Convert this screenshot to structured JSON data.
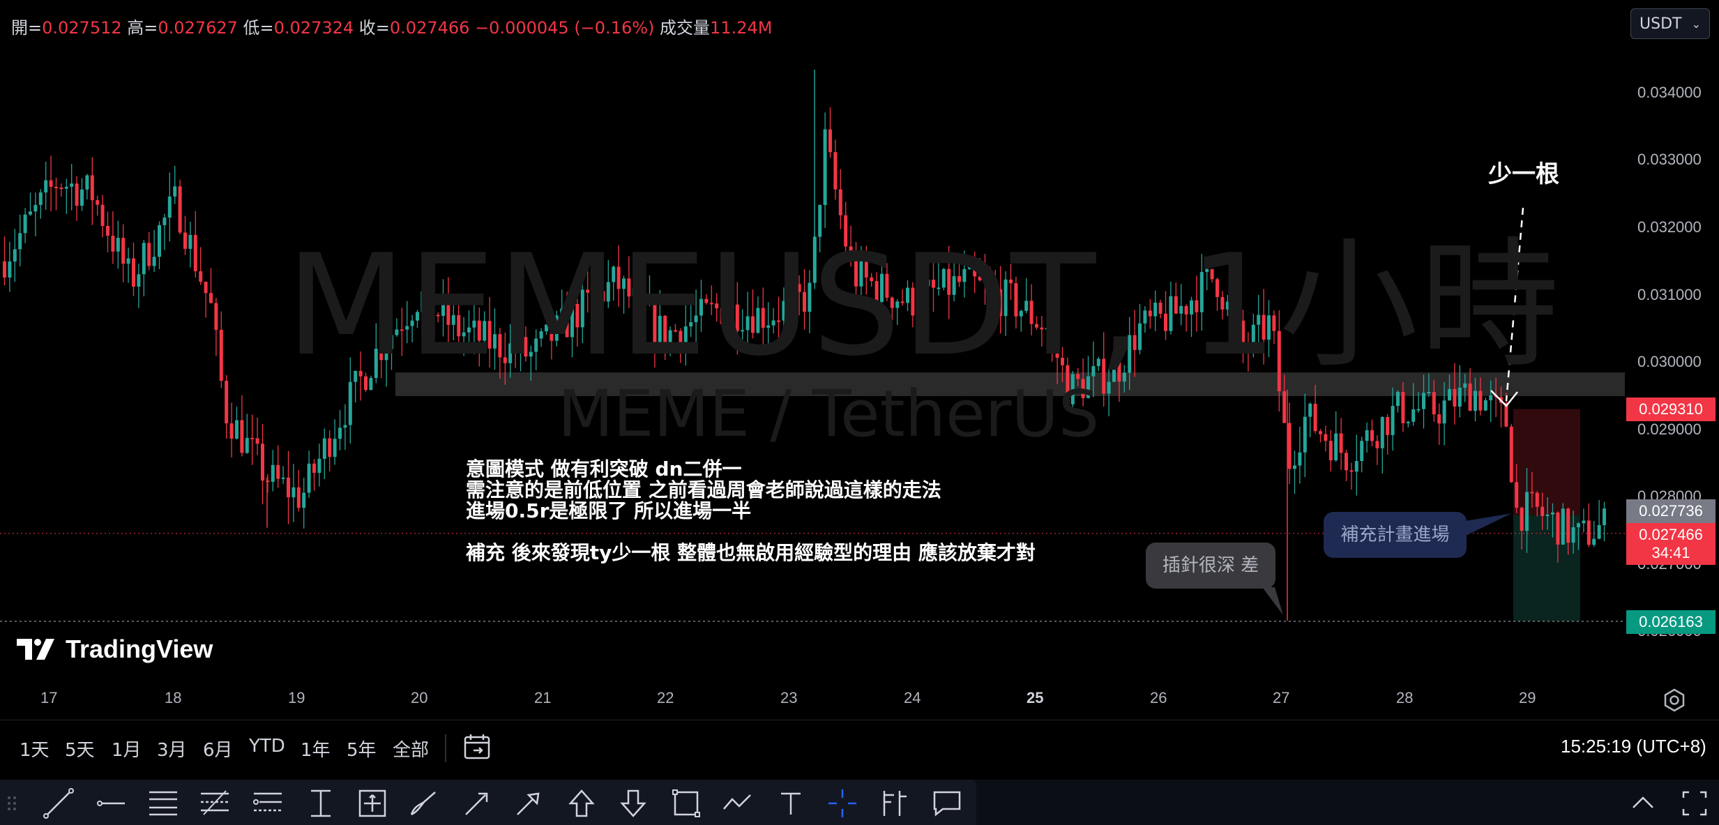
{
  "ohlc": {
    "open_label": "開=",
    "open": "0.027512",
    "high_label": "高=",
    "high": "0.027627",
    "low_label": "低=",
    "low": "0.027324",
    "close_label": "收=",
    "close": "0.027466",
    "change": "−0.000045 (−0.16%)",
    "volume_label": "成交量",
    "volume": "11.24M"
  },
  "currency": {
    "value": "USDT"
  },
  "watermark": {
    "symbol": "MEMEUSDT, 1小時",
    "pair": "MEME / TetherUS"
  },
  "price_scale": {
    "ticks": [
      "0.034000",
      "0.033000",
      "0.032000",
      "0.031000",
      "0.030000",
      "0.029000",
      "0.028000",
      "0.027000",
      "0.026000"
    ],
    "labels": {
      "stop": "0.029310",
      "entry": "0.027736",
      "last": "0.027466",
      "countdown": "34:41",
      "target": "0.026163"
    }
  },
  "time_scale": {
    "ticks": [
      "17",
      "18",
      "19",
      "20",
      "21",
      "22",
      "23",
      "24",
      "25",
      "26",
      "27",
      "28",
      "29"
    ]
  },
  "annotations": {
    "notes": [
      "意圖模式 做有利突破 dn二併一",
      "需注意的是前低位置 之前看過周會老師說過這樣的走法",
      "進場0.5r是極限了 所以進場一半",
      "",
      "補充 後來發現ty少一根 整體也無啟用經驗型的理由 應該放棄才對"
    ],
    "missing_bar": "少一根",
    "wick_callout": "插針很深 差",
    "entry_callout": "補充計畫進場"
  },
  "logo": {
    "text": "TradingView"
  },
  "range_bar": {
    "buttons": [
      "1天",
      "5天",
      "1月",
      "3月",
      "6月",
      "YTD",
      "1年",
      "5年",
      "全部"
    ],
    "clock": "15:25:19 (UTC+8)"
  },
  "colors": {
    "up": "#26a69a",
    "down": "#f23645",
    "bg": "#000000",
    "zone": "#2a2a2a"
  },
  "icons": [
    "line-tool-icon",
    "horizontal-ray-icon",
    "parallel-channel-icon",
    "fib-retracement-icon",
    "fib-extension-icon",
    "long-position-icon",
    "date-price-range-icon",
    "brush-icon",
    "arrow-icon",
    "arrow-marker-icon",
    "arrow-up-icon",
    "arrow-down-icon",
    "rectangle-icon",
    "path-icon",
    "text-icon",
    "crosshair-icon",
    "anchored-vwap-icon",
    "comment-icon"
  ]
}
